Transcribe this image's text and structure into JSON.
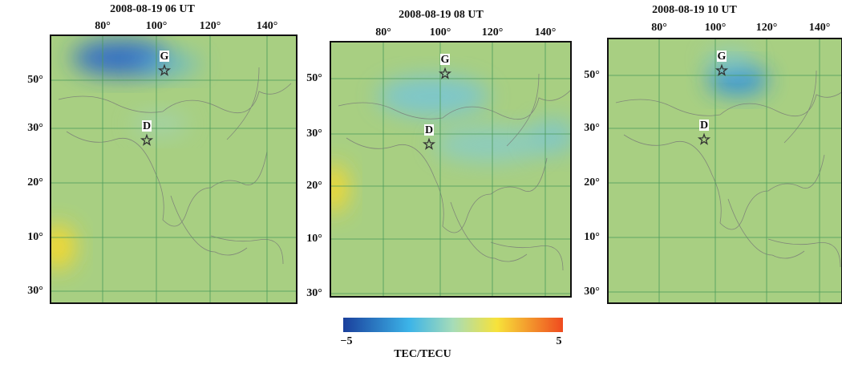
{
  "panels": [
    {
      "title": "2008-08-19 06 UT",
      "lon_labels": [
        "80°",
        "100°",
        "120°",
        "140°"
      ],
      "lat_labels": [
        "50°",
        "30°",
        "20°",
        "10°",
        "30°"
      ],
      "stations": [
        {
          "label": "G"
        },
        {
          "label": "D"
        }
      ]
    },
    {
      "title": "2008-08-19 08 UT",
      "lon_labels": [
        "80°",
        "100°",
        "120°",
        "140°"
      ],
      "lat_labels": [
        "50°",
        "30°",
        "20°",
        "10°",
        "30°"
      ],
      "stations": [
        {
          "label": "G"
        },
        {
          "label": "D"
        }
      ]
    },
    {
      "title": "2008-08-19 10 UT",
      "lon_labels": [
        "80°",
        "100°",
        "120°",
        "140°"
      ],
      "lat_labels": [
        "50°",
        "30°",
        "20°",
        "10°",
        "30°"
      ],
      "stations": [
        {
          "label": "G"
        },
        {
          "label": "D"
        }
      ]
    }
  ],
  "colorbar": {
    "min_label": "−5",
    "max_label": "5",
    "title": "TEC/TECU"
  }
}
